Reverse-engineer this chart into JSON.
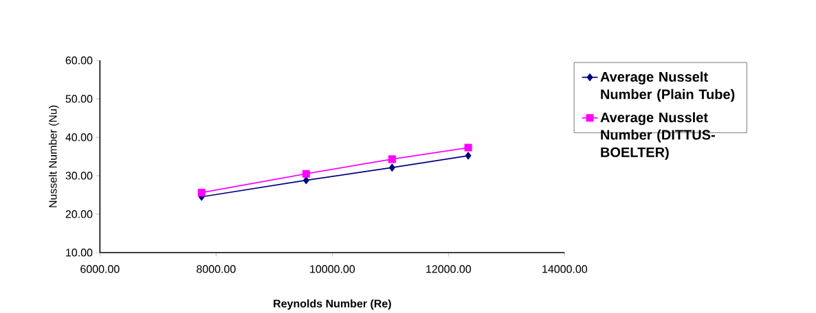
{
  "chart_data": {
    "type": "line",
    "xlabel": "Reynolds Number (Re)",
    "ylabel": "Nusselt Number (Nu)",
    "x": [
      7750,
      9550,
      11030,
      12340
    ],
    "series": [
      {
        "name": "Average Nusselt Number (Plain Tube)",
        "color": "#000080",
        "marker": "diamond",
        "values": [
          24.5,
          28.8,
          32.1,
          35.2
        ]
      },
      {
        "name": "Average Nusslet Number (DITTUS-BOELTER)",
        "color": "#ff00ff",
        "marker": "square",
        "values": [
          25.6,
          30.5,
          34.3,
          37.3
        ]
      }
    ],
    "xlim": [
      6000,
      14000
    ],
    "xticks": [
      {
        "value": 6000,
        "label": "6000.00"
      },
      {
        "value": 8000,
        "label": "8000.00"
      },
      {
        "value": 10000,
        "label": "10000.00"
      },
      {
        "value": 12000,
        "label": "12000.00"
      },
      {
        "value": 14000,
        "label": "14000.00"
      }
    ],
    "ylim": [
      10,
      60
    ],
    "yticks": [
      {
        "value": 10,
        "label": "10.00"
      },
      {
        "value": 20,
        "label": "20.00"
      },
      {
        "value": 30,
        "label": "30.00"
      },
      {
        "value": 40,
        "label": "40.00"
      },
      {
        "value": 50,
        "label": "50.00"
      },
      {
        "value": 60,
        "label": "60.00"
      }
    ],
    "grid": false,
    "legend": "right",
    "line_style": "solid"
  }
}
